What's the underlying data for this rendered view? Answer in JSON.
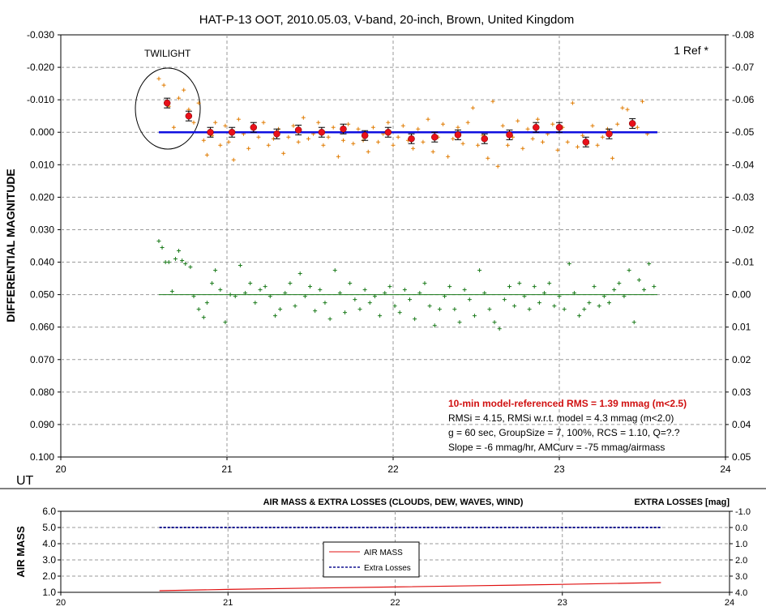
{
  "chart_data": [
    {
      "type": "scatter",
      "title": "HAT-P-13 OOT, 2010.05.03, V-band, 20-inch, Brown, United Kingdom",
      "xlabel": "UT",
      "ylabel": "DIFFERENTIAL MAGNITUDE",
      "xlim": [
        20,
        24
      ],
      "ylim": [
        -0.03,
        0.1
      ],
      "y_inverted": true,
      "y2lim": [
        -0.08,
        0.05
      ],
      "x_ticks": [
        "20",
        "21",
        "22",
        "23",
        "24"
      ],
      "y_ticks": [
        "-0.030",
        "-0.020",
        "-0.010",
        "0.000",
        "0.010",
        "0.020",
        "0.030",
        "0.040",
        "0.050",
        "0.060",
        "0.070",
        "0.080",
        "0.090",
        "0.100"
      ],
      "y2_ticks": [
        "-0.08",
        "-0.07",
        "-0.06",
        "-0.05",
        "-0.04",
        "-0.03",
        "-0.02",
        "-0.01",
        "0.00",
        "0.01",
        "0.02",
        "0.03",
        "0.04",
        "0.05"
      ],
      "grid": true,
      "ref_label": "1 Ref *",
      "annotation": "TWILIGHT",
      "stats": {
        "line1": "10-min model-referenced RMS = 1.39 mmag (m<2.5)",
        "line2": "RMSi = 4.15, RMSi w.r.t. model = 4.3 mmag (m<2.0)",
        "line3": "g = 60 sec, GroupSize = 7, 100%, RCS = 1.10, Q=?.?",
        "line4": "Slope = -6 mmag/hr, AMCurv = -75 mmag/airmass"
      },
      "colors": {
        "target": "#e07b00",
        "group": "#e8101a",
        "check": "#1a7a1a",
        "model": "#1010e0",
        "check_model": "#1a7a1a"
      },
      "series": [
        {
          "kind": "target-points",
          "points": [
            [
              20.59,
              -0.0165
            ],
            [
              20.62,
              -0.0145
            ],
            [
              20.65,
              -0.008
            ],
            [
              20.68,
              -0.0015
            ],
            [
              20.71,
              -0.0105
            ],
            [
              20.74,
              -0.013
            ],
            [
              20.77,
              -0.007
            ],
            [
              20.8,
              -0.003
            ],
            [
              20.83,
              -0.009
            ],
            [
              20.86,
              0.0025
            ],
            [
              20.88,
              0.007
            ],
            [
              20.91,
              0.001
            ],
            [
              20.93,
              -0.003
            ],
            [
              20.96,
              0.004
            ],
            [
              20.99,
              -0.002
            ],
            [
              21.01,
              0.003
            ],
            [
              21.04,
              0.0085
            ],
            [
              21.07,
              -0.004
            ],
            [
              21.1,
              0.0005
            ],
            [
              21.13,
              0.005
            ],
            [
              21.16,
              -0.001
            ],
            [
              21.19,
              0.0015
            ],
            [
              21.22,
              -0.003
            ],
            [
              21.25,
              0.004
            ],
            [
              21.28,
              0.002
            ],
            [
              21.31,
              -0.001
            ],
            [
              21.34,
              0.0065
            ],
            [
              21.37,
              0.0015
            ],
            [
              21.4,
              -0.002
            ],
            [
              21.43,
              0.003
            ],
            [
              21.46,
              -0.0045
            ],
            [
              21.49,
              0.002
            ],
            [
              21.52,
              0.0005
            ],
            [
              21.55,
              -0.003
            ],
            [
              21.58,
              0.004
            ],
            [
              21.61,
              0.0015
            ],
            [
              21.64,
              -0.0015
            ],
            [
              21.67,
              0.0075
            ],
            [
              21.7,
              0.0025
            ],
            [
              21.73,
              -0.0025
            ],
            [
              21.76,
              0.0035
            ],
            [
              21.79,
              -0.001
            ],
            [
              21.82,
              0.0025
            ],
            [
              21.85,
              0.006
            ],
            [
              21.88,
              -0.0015
            ],
            [
              21.91,
              0.003
            ],
            [
              21.94,
              0.0005
            ],
            [
              21.97,
              -0.003
            ],
            [
              22.0,
              0.004
            ],
            [
              22.03,
              0.0015
            ],
            [
              22.06,
              -0.002
            ],
            [
              22.09,
              0.0025
            ],
            [
              22.12,
              0.005
            ],
            [
              22.15,
              -0.001
            ],
            [
              22.18,
              0.003
            ],
            [
              22.21,
              -0.004
            ],
            [
              22.24,
              0.006
            ],
            [
              22.27,
              0.0015
            ],
            [
              22.3,
              -0.0025
            ],
            [
              22.33,
              0.0075
            ],
            [
              22.36,
              0.002
            ],
            [
              22.39,
              -0.0015
            ],
            [
              22.42,
              0.0035
            ],
            [
              22.45,
              -0.003
            ],
            [
              22.48,
              -0.0075
            ],
            [
              22.51,
              0.004
            ],
            [
              22.54,
              0.001
            ],
            [
              22.57,
              0.008
            ],
            [
              22.6,
              -0.0095
            ],
            [
              22.63,
              0.0105
            ],
            [
              22.66,
              -0.002
            ],
            [
              22.69,
              0.004
            ],
            [
              22.72,
              0.0015
            ],
            [
              22.75,
              -0.0035
            ],
            [
              22.78,
              0.005
            ],
            [
              22.81,
              -0.001
            ],
            [
              22.84,
              0.002
            ],
            [
              22.87,
              -0.004
            ],
            [
              22.9,
              0.003
            ],
            [
              22.93,
              0.0005
            ],
            [
              22.96,
              -0.0025
            ],
            [
              22.99,
              0.0055
            ],
            [
              23.02,
              -0.0015
            ],
            [
              23.05,
              0.003
            ],
            [
              23.08,
              -0.009
            ],
            [
              23.11,
              0.0045
            ],
            [
              23.14,
              0.001
            ],
            [
              23.17,
              0.0035
            ],
            [
              23.2,
              -0.002
            ],
            [
              23.23,
              0.004
            ],
            [
              23.26,
              0.0015
            ],
            [
              23.29,
              -0.001
            ],
            [
              23.32,
              0.008
            ],
            [
              23.35,
              -0.0025
            ],
            [
              23.38,
              -0.0075
            ],
            [
              23.41,
              -0.007
            ],
            [
              23.44,
              -0.003
            ],
            [
              23.47,
              -0.0015
            ],
            [
              23.5,
              -0.0095
            ],
            [
              23.53,
              0.0005
            ]
          ]
        },
        {
          "kind": "group-average",
          "points": [
            [
              20.64,
              -0.009
            ],
            [
              20.77,
              -0.005
            ],
            [
              20.9,
              0.0
            ],
            [
              21.03,
              0.0
            ],
            [
              21.16,
              -0.0015
            ],
            [
              21.3,
              0.0005
            ],
            [
              21.43,
              -0.0007
            ],
            [
              21.57,
              0.0
            ],
            [
              21.7,
              -0.001
            ],
            [
              21.83,
              0.001
            ],
            [
              21.97,
              0.0
            ],
            [
              22.11,
              0.002
            ],
            [
              22.25,
              0.0015
            ],
            [
              22.39,
              0.0008
            ],
            [
              22.55,
              0.002
            ],
            [
              22.7,
              0.0008
            ],
            [
              22.86,
              -0.0015
            ],
            [
              23.0,
              -0.0015
            ],
            [
              23.16,
              0.003
            ],
            [
              23.3,
              0.0005
            ],
            [
              23.44,
              -0.0027
            ]
          ]
        },
        {
          "kind": "check-points",
          "points": [
            [
              20.59,
              0.0335
            ],
            [
              20.61,
              0.0355
            ],
            [
              20.63,
              0.04
            ],
            [
              20.65,
              0.04
            ],
            [
              20.67,
              0.049
            ],
            [
              20.69,
              0.039
            ],
            [
              20.71,
              0.0365
            ],
            [
              20.73,
              0.0395
            ],
            [
              20.75,
              0.0405
            ],
            [
              20.78,
              0.0415
            ],
            [
              20.8,
              0.0505
            ],
            [
              20.83,
              0.0545
            ],
            [
              20.86,
              0.057
            ],
            [
              20.88,
              0.0525
            ],
            [
              20.91,
              0.0465
            ],
            [
              20.93,
              0.0425
            ],
            [
              20.96,
              0.0485
            ],
            [
              20.99,
              0.0585
            ],
            [
              21.02,
              0.05
            ],
            [
              21.05,
              0.0505
            ],
            [
              21.08,
              0.041
            ],
            [
              21.11,
              0.0495
            ],
            [
              21.14,
              0.0465
            ],
            [
              21.17,
              0.0525
            ],
            [
              21.2,
              0.0485
            ],
            [
              21.23,
              0.0475
            ],
            [
              21.26,
              0.0505
            ],
            [
              21.29,
              0.0565
            ],
            [
              21.32,
              0.0545
            ],
            [
              21.35,
              0.0495
            ],
            [
              21.38,
              0.0465
            ],
            [
              21.41,
              0.0535
            ],
            [
              21.44,
              0.0435
            ],
            [
              21.47,
              0.0505
            ],
            [
              21.5,
              0.0475
            ],
            [
              21.53,
              0.055
            ],
            [
              21.56,
              0.0485
            ],
            [
              21.59,
              0.0525
            ],
            [
              21.62,
              0.0575
            ],
            [
              21.65,
              0.0425
            ],
            [
              21.68,
              0.0495
            ],
            [
              21.71,
              0.0555
            ],
            [
              21.74,
              0.0465
            ],
            [
              21.77,
              0.0515
            ],
            [
              21.8,
              0.0545
            ],
            [
              21.83,
              0.0485
            ],
            [
              21.86,
              0.0525
            ],
            [
              21.89,
              0.0505
            ],
            [
              21.92,
              0.0565
            ],
            [
              21.95,
              0.0495
            ],
            [
              21.98,
              0.0475
            ],
            [
              22.01,
              0.0535
            ],
            [
              22.04,
              0.0555
            ],
            [
              22.07,
              0.0485
            ],
            [
              22.1,
              0.0515
            ],
            [
              22.13,
              0.0575
            ],
            [
              22.16,
              0.0495
            ],
            [
              22.19,
              0.0465
            ],
            [
              22.22,
              0.0535
            ],
            [
              22.25,
              0.0595
            ],
            [
              22.28,
              0.0545
            ],
            [
              22.31,
              0.0505
            ],
            [
              22.34,
              0.0475
            ],
            [
              22.37,
              0.0545
            ],
            [
              22.4,
              0.0585
            ],
            [
              22.43,
              0.0485
            ],
            [
              22.46,
              0.0515
            ],
            [
              22.49,
              0.0565
            ],
            [
              22.52,
              0.0425
            ],
            [
              22.55,
              0.0495
            ],
            [
              22.58,
              0.0545
            ],
            [
              22.61,
              0.0585
            ],
            [
              22.64,
              0.0605
            ],
            [
              22.67,
              0.0515
            ],
            [
              22.7,
              0.0475
            ],
            [
              22.73,
              0.0535
            ],
            [
              22.76,
              0.0465
            ],
            [
              22.79,
              0.0505
            ],
            [
              22.82,
              0.0545
            ],
            [
              22.85,
              0.0475
            ],
            [
              22.88,
              0.0525
            ],
            [
              22.91,
              0.0495
            ],
            [
              22.94,
              0.0465
            ],
            [
              22.97,
              0.0535
            ],
            [
              23.0,
              0.0505
            ],
            [
              23.03,
              0.0545
            ],
            [
              23.06,
              0.0405
            ],
            [
              23.09,
              0.0495
            ],
            [
              23.12,
              0.0565
            ],
            [
              23.15,
              0.0545
            ],
            [
              23.18,
              0.0525
            ],
            [
              23.21,
              0.0475
            ],
            [
              23.24,
              0.0535
            ],
            [
              23.27,
              0.0505
            ],
            [
              23.3,
              0.0525
            ],
            [
              23.33,
              0.0485
            ],
            [
              23.36,
              0.0465
            ],
            [
              23.39,
              0.0505
            ],
            [
              23.42,
              0.0425
            ],
            [
              23.45,
              0.0585
            ],
            [
              23.48,
              0.0455
            ],
            [
              23.51,
              0.0485
            ],
            [
              23.54,
              0.0405
            ],
            [
              23.57,
              0.0475
            ]
          ]
        },
        {
          "kind": "model-line",
          "x": [
            20.59,
            23.59
          ],
          "y": [
            0.0,
            0.0
          ]
        },
        {
          "kind": "check-model-line",
          "x": [
            20.59,
            23.59
          ],
          "y": [
            0.05,
            0.05
          ]
        }
      ]
    },
    {
      "type": "line",
      "title": "AIR MASS & EXTRA LOSSES (CLOUDS, DEW, WAVES, WIND)",
      "xlabel": "",
      "ylabel": "AIR MASS",
      "y2label": "EXTRA LOSSES [mag]",
      "xlim": [
        20,
        24
      ],
      "ylim": [
        1.0,
        6.0
      ],
      "y2lim": [
        -1.0,
        4.0
      ],
      "y2_inverted": true,
      "x_ticks": [
        "20",
        "21",
        "22",
        "23",
        "24"
      ],
      "y_ticks": [
        "1.0",
        "2.0",
        "3.0",
        "4.0",
        "5.0",
        "6.0"
      ],
      "y2_ticks": [
        "-1.0",
        "0.0",
        "1.0",
        "2.0",
        "3.0",
        "4.0"
      ],
      "grid": true,
      "legend": {
        "placement": "center-left",
        "items": [
          "AIR MASS",
          "Extra Losses"
        ]
      },
      "colors": {
        "airmass": "#e01010",
        "losses": "#101090"
      },
      "series": [
        {
          "name": "AIR MASS",
          "x": [
            20.59,
            21.0,
            21.5,
            22.0,
            22.5,
            23.0,
            23.59
          ],
          "y": [
            1.1,
            1.18,
            1.26,
            1.33,
            1.41,
            1.49,
            1.6
          ]
        },
        {
          "name": "Extra Losses",
          "x": [
            20.59,
            23.59
          ],
          "y": [
            0.0,
            0.0
          ]
        }
      ]
    }
  ]
}
